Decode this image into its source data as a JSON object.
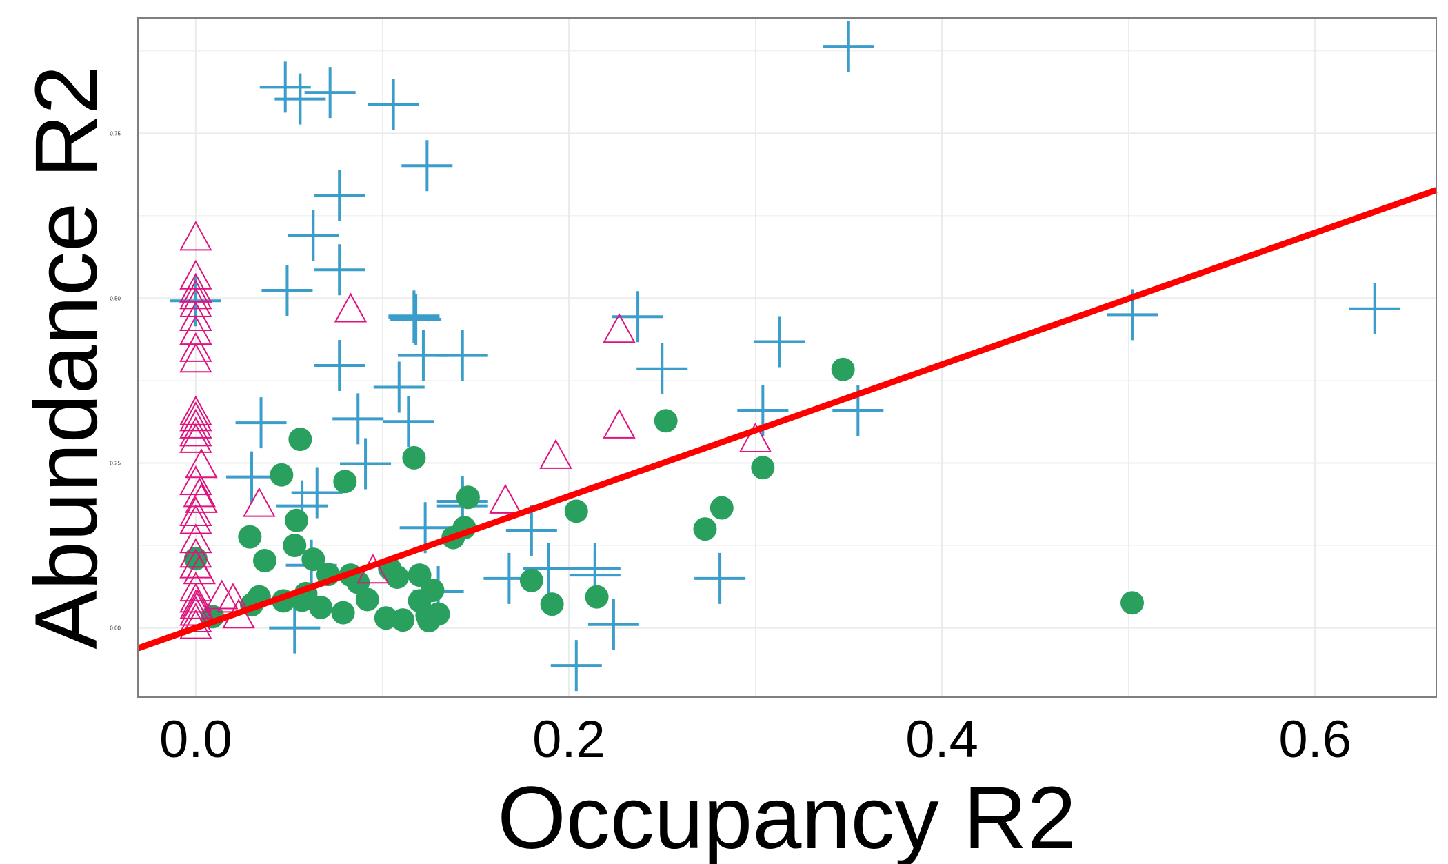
{
  "chart_data": {
    "type": "scatter",
    "title": "",
    "xlabel": "Occupancy R2",
    "ylabel": "Abundance R2",
    "xlim": [
      -0.031,
      0.665
    ],
    "ylim": [
      -0.105,
      0.925
    ],
    "x_ticks": [
      {
        "value": 0.0,
        "label": "0.0"
      },
      {
        "value": 0.2,
        "label": "0.2"
      },
      {
        "value": 0.4,
        "label": "0.4"
      },
      {
        "value": 0.6,
        "label": "0.6"
      }
    ],
    "y_ticks": [
      {
        "value": 0.0,
        "label": "0.00"
      },
      {
        "value": 0.25,
        "label": "0.25"
      },
      {
        "value": 0.5,
        "label": "0.50"
      },
      {
        "value": 0.75,
        "label": "0.75"
      }
    ],
    "grid": true,
    "legend": "none",
    "colors": {
      "cross": "#3b9dc9",
      "circle": "#2aa05e",
      "triangle": "#e0127f",
      "fit": "#ff0000",
      "grid": "#ebebeb",
      "frame": "#7f7f7f"
    },
    "trend_line": {
      "x": [
        -0.031,
        0.665
      ],
      "y": [
        -0.031,
        0.664
      ]
    },
    "series": [
      {
        "marker": "cross",
        "color": "#3b9dc9",
        "points": [
          [
            0.048,
            0.82
          ],
          [
            0.056,
            0.802
          ],
          [
            0.072,
            0.812
          ],
          [
            0.106,
            0.794
          ],
          [
            0.124,
            0.701
          ],
          [
            0.35,
            0.882
          ],
          [
            0.077,
            0.656
          ],
          [
            0.063,
            0.595
          ],
          [
            0.077,
            0.543
          ],
          [
            0.049,
            0.512
          ],
          [
            0.0,
            0.496
          ],
          [
            0.117,
            0.473
          ],
          [
            0.117,
            0.471
          ],
          [
            0.118,
            0.468
          ],
          [
            0.237,
            0.472
          ],
          [
            0.502,
            0.475
          ],
          [
            0.632,
            0.484
          ],
          [
            0.313,
            0.434
          ],
          [
            0.122,
            0.413
          ],
          [
            0.143,
            0.413
          ],
          [
            0.077,
            0.398
          ],
          [
            0.25,
            0.393
          ],
          [
            0.109,
            0.365
          ],
          [
            0.087,
            0.317
          ],
          [
            0.114,
            0.313
          ],
          [
            0.035,
            0.311
          ],
          [
            0.304,
            0.33
          ],
          [
            0.355,
            0.33
          ],
          [
            0.091,
            0.249
          ],
          [
            0.03,
            0.229
          ],
          [
            0.065,
            0.205
          ],
          [
            0.057,
            0.185
          ],
          [
            0.143,
            0.185
          ],
          [
            0.143,
            0.192
          ],
          [
            0.123,
            0.152
          ],
          [
            0.18,
            0.148
          ],
          [
            0.062,
            0.095
          ],
          [
            0.189,
            0.09
          ],
          [
            0.214,
            0.09
          ],
          [
            0.214,
            0.08
          ],
          [
            0.168,
            0.075
          ],
          [
            0.281,
            0.075
          ],
          [
            0.13,
            0.055
          ],
          [
            0.224,
            0.005
          ],
          [
            0.053,
            0.0
          ],
          [
            0.204,
            -0.057
          ]
        ]
      },
      {
        "marker": "circle",
        "color": "#2aa05e",
        "points": [
          [
            0.347,
            0.392
          ],
          [
            0.056,
            0.286
          ],
          [
            0.252,
            0.314
          ],
          [
            0.117,
            0.258
          ],
          [
            0.304,
            0.243
          ],
          [
            0.046,
            0.232
          ],
          [
            0.08,
            0.222
          ],
          [
            0.146,
            0.198
          ],
          [
            0.054,
            0.163
          ],
          [
            0.204,
            0.177
          ],
          [
            0.282,
            0.182
          ],
          [
            0.144,
            0.152
          ],
          [
            0.273,
            0.15
          ],
          [
            0.138,
            0.137
          ],
          [
            0.029,
            0.138
          ],
          [
            0.053,
            0.125
          ],
          [
            0.0,
            0.105
          ],
          [
            0.037,
            0.102
          ],
          [
            0.063,
            0.104
          ],
          [
            0.071,
            0.081
          ],
          [
            0.083,
            0.08
          ],
          [
            0.104,
            0.09
          ],
          [
            0.12,
            0.08
          ],
          [
            0.108,
            0.077
          ],
          [
            0.18,
            0.072
          ],
          [
            0.087,
            0.069
          ],
          [
            0.127,
            0.057
          ],
          [
            0.059,
            0.052
          ],
          [
            0.034,
            0.047
          ],
          [
            0.215,
            0.047
          ],
          [
            0.092,
            0.043
          ],
          [
            0.047,
            0.041
          ],
          [
            0.057,
            0.042
          ],
          [
            0.12,
            0.041
          ],
          [
            0.191,
            0.036
          ],
          [
            0.502,
            0.038
          ],
          [
            0.03,
            0.035
          ],
          [
            0.067,
            0.031
          ],
          [
            0.079,
            0.023
          ],
          [
            0.13,
            0.021
          ],
          [
            0.124,
            0.019
          ],
          [
            0.009,
            0.017
          ],
          [
            0.102,
            0.015
          ],
          [
            0.111,
            0.012
          ],
          [
            0.125,
            0.011
          ]
        ]
      },
      {
        "marker": "triangle",
        "color": "#e0127f",
        "points": [
          [
            0.0,
            0.589
          ],
          [
            0.0,
            0.53
          ],
          [
            0.0,
            0.51
          ],
          [
            0.0,
            0.5
          ],
          [
            0.0,
            0.488
          ],
          [
            0.0,
            0.467
          ],
          [
            0.0,
            0.446
          ],
          [
            0.0,
            0.42
          ],
          [
            0.0,
            0.404
          ],
          [
            0.083,
            0.48
          ],
          [
            0.227,
            0.449
          ],
          [
            0.0,
            0.324
          ],
          [
            0.0,
            0.315
          ],
          [
            0.0,
            0.304
          ],
          [
            0.0,
            0.292
          ],
          [
            0.0,
            0.282
          ],
          [
            0.227,
            0.304
          ],
          [
            0.3,
            0.283
          ],
          [
            0.193,
            0.258
          ],
          [
            0.003,
            0.244
          ],
          [
            0.0,
            0.218
          ],
          [
            0.002,
            0.2
          ],
          [
            0.003,
            0.191
          ],
          [
            0.0,
            0.171
          ],
          [
            0.0,
            0.159
          ],
          [
            0.166,
            0.19
          ],
          [
            0.034,
            0.185
          ],
          [
            0.0,
            0.13
          ],
          [
            0.0,
            0.108
          ],
          [
            0.0,
            0.092
          ],
          [
            0.002,
            0.083
          ],
          [
            0.095,
            0.084
          ],
          [
            0.0,
            0.057
          ],
          [
            0.014,
            0.045
          ],
          [
            0.0,
            0.04
          ],
          [
            0.0,
            0.03
          ],
          [
            0.0,
            0.02
          ],
          [
            0.0,
            0.01
          ],
          [
            0.0,
            0.0
          ],
          [
            0.02,
            0.04
          ],
          [
            0.023,
            0.016
          ],
          [
            0.001,
            0.03
          ]
        ]
      }
    ]
  }
}
